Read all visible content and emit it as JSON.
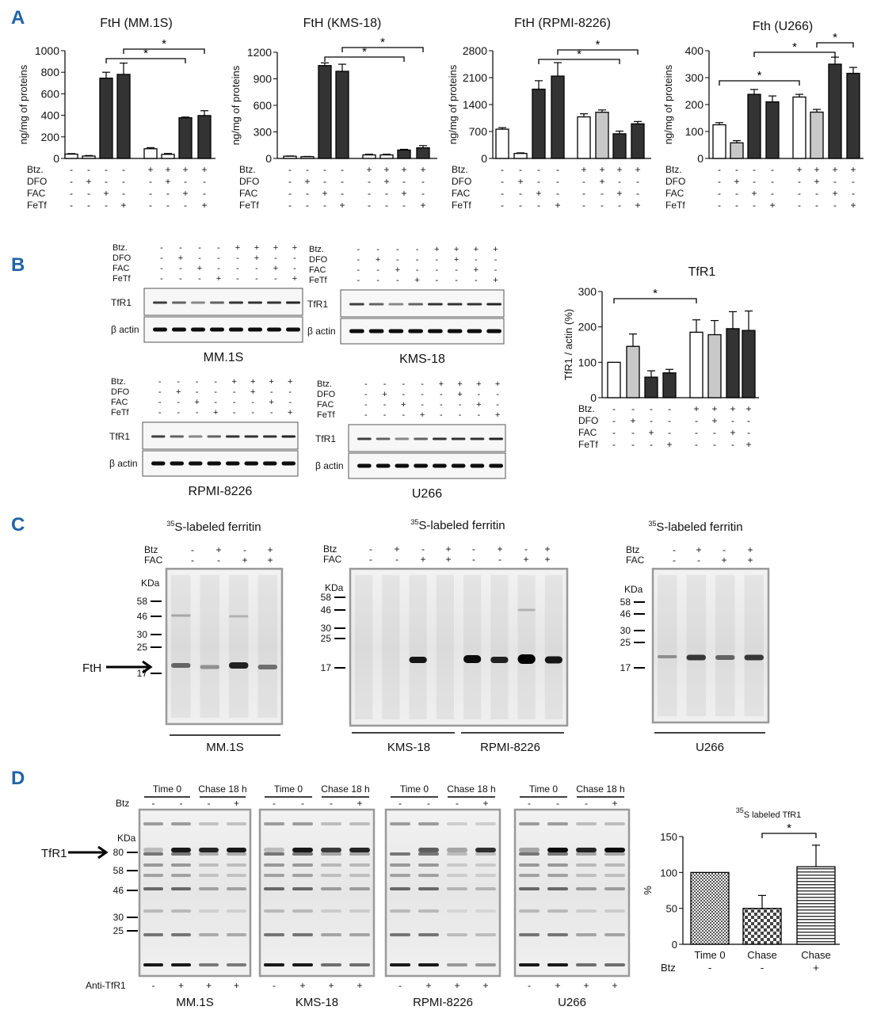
{
  "panels": {
    "A": "A",
    "B": "B",
    "C": "C",
    "D": "D"
  },
  "colors": {
    "panel_letter": "#1f63a6",
    "dark_bar": "#333333",
    "grey_bar": "#c8c8c8",
    "white_bar": "#ffffff"
  },
  "row_labels": {
    "btz": "Btz.",
    "dfo": "DFO",
    "fac": "FAC",
    "fetf": "FeTf",
    "btz_short": "Btz",
    "fac_c": "FAC",
    "anti_tfr1": "Anti-TfR1"
  },
  "sig": "*",
  "panel_a": {
    "ylabel": "ng/mg of proteins",
    "treat_signs": {
      "btz": [
        "-",
        "-",
        "-",
        "-",
        "+",
        "+",
        "+",
        "+"
      ],
      "dfo": [
        "-",
        "+",
        "-",
        "-",
        "-",
        "+",
        "-",
        "-"
      ],
      "fac": [
        "-",
        "-",
        "+",
        "-",
        "-",
        "-",
        "+",
        "-"
      ],
      "fetf": [
        "-",
        "-",
        "-",
        "+",
        "-",
        "-",
        "-",
        "+"
      ]
    }
  },
  "panel_b": {
    "blot_labels": {
      "tfr1": "TfR1",
      "actin": "β actin"
    },
    "cell_lines": [
      "MM.1S",
      "KMS-18",
      "RPMI-8226",
      "U266"
    ],
    "treat_signs": {
      "btz": [
        "-",
        "-",
        "-",
        "-",
        "+",
        "+",
        "+",
        "+"
      ],
      "dfo": [
        "-",
        "+",
        "-",
        "-",
        "-",
        "+",
        "-",
        "-"
      ],
      "fac": [
        "-",
        "-",
        "+",
        "-",
        "-",
        "-",
        "+",
        "-"
      ],
      "fetf": [
        "-",
        "-",
        "-",
        "+",
        "-",
        "-",
        "-",
        "+"
      ]
    }
  },
  "panel_c": {
    "title": "S-labeled ferritin",
    "title_sup": "35",
    "kda": "KDa",
    "ftH_arrow": "FtH",
    "markers_left": [
      "58",
      "46",
      "30",
      "25",
      "17"
    ],
    "markers_mid": [
      "58",
      "46",
      "30",
      "25",
      "17"
    ],
    "markers_right": [
      "58",
      "46",
      "30",
      "25",
      "17"
    ],
    "btz_signs_4": [
      "-",
      "+",
      "-",
      "+"
    ],
    "fac_signs_4": [
      "-",
      "-",
      "+",
      "+"
    ],
    "btz_signs_8": [
      "-",
      "+",
      "-",
      "+",
      "-",
      "+",
      "-",
      "+"
    ],
    "fac_signs_8": [
      "-",
      "-",
      "+",
      "+",
      "-",
      "-",
      "+",
      "+"
    ],
    "lines": [
      "MM.1S",
      "KMS-18",
      "RPMI-8226",
      "U266"
    ]
  },
  "panel_d": {
    "time0": "Time 0",
    "chase": "Chase 18 h",
    "kda": "KDa",
    "tfr1_arrow": "TfR1",
    "markers": [
      "80",
      "58",
      "46",
      "30",
      "25"
    ],
    "btz_signs": [
      "-",
      "-",
      "-",
      "+"
    ],
    "anti_signs": [
      "-",
      "+",
      "+",
      "+"
    ],
    "lines": [
      "MM.1S",
      "KMS-18",
      "RPMI-8226",
      "U266"
    ]
  },
  "chart_data": [
    {
      "type": "bar",
      "title": "FtH (MM.1S)",
      "ylabel": "ng/mg of proteins",
      "ylim": [
        0,
        1000
      ],
      "yticks": [
        0,
        200,
        400,
        600,
        800,
        1000
      ],
      "values": [
        40,
        22,
        745,
        780,
        90,
        38,
        378,
        398
      ],
      "errors": [
        5,
        5,
        55,
        105,
        10,
        8,
        6,
        45
      ],
      "fills": [
        "white",
        "white",
        "dark",
        "dark",
        "white",
        "white",
        "dark",
        "dark"
      ],
      "sig": [
        [
          2,
          6,
          "*"
        ],
        [
          3,
          7,
          "*"
        ]
      ]
    },
    {
      "type": "bar",
      "title": "FtH (KMS-18)",
      "ylabel": "ng/mg of proteins",
      "ylim": [
        0,
        1200
      ],
      "yticks": [
        0,
        300,
        600,
        900,
        1200
      ],
      "values": [
        25,
        20,
        1050,
        985,
        40,
        40,
        95,
        120
      ],
      "errors": [
        3,
        3,
        30,
        80,
        8,
        8,
        8,
        25
      ],
      "fills": [
        "white",
        "white",
        "dark",
        "dark",
        "white",
        "white",
        "dark",
        "dark"
      ],
      "sig": [
        [
          2,
          6,
          "*"
        ],
        [
          3,
          7,
          "*"
        ]
      ]
    },
    {
      "type": "bar",
      "title": "FtH (RPMI-8226)",
      "ylabel": "ng/mg of proteins",
      "ylim": [
        0,
        2800
      ],
      "yticks": [
        0,
        700,
        1400,
        2100,
        2800
      ],
      "values": [
        760,
        130,
        1800,
        2140,
        1080,
        1200,
        640,
        900
      ],
      "errors": [
        40,
        15,
        220,
        350,
        80,
        60,
        70,
        60
      ],
      "fills": [
        "white",
        "white",
        "dark",
        "dark",
        "white",
        "grey",
        "dark",
        "dark"
      ],
      "sig": [
        [
          2,
          6,
          "*"
        ],
        [
          3,
          7,
          "*"
        ]
      ]
    },
    {
      "type": "bar",
      "title": "Fth (U266)",
      "ylabel": "ng/mg of proteins",
      "ylim": [
        0,
        400
      ],
      "yticks": [
        0,
        100,
        200,
        300,
        400
      ],
      "values": [
        125,
        58,
        238,
        210,
        228,
        172,
        350,
        316
      ],
      "errors": [
        8,
        8,
        18,
        22,
        10,
        10,
        26,
        22
      ],
      "fills": [
        "white",
        "grey",
        "dark",
        "dark",
        "white",
        "grey",
        "dark",
        "dark"
      ],
      "sig": [
        [
          0,
          4,
          "*"
        ],
        [
          2,
          6,
          "*"
        ],
        [
          5,
          7,
          "*"
        ]
      ]
    },
    {
      "type": "bar",
      "title": "TfR1",
      "ylabel": "TfR1 / actin (%)",
      "ylim": [
        0,
        300
      ],
      "yticks": [
        0,
        100,
        200,
        300
      ],
      "values": [
        100,
        145,
        58,
        70,
        185,
        178,
        195,
        190
      ],
      "errors": [
        0,
        35,
        18,
        10,
        35,
        40,
        48,
        55
      ],
      "fills": [
        "white",
        "grey",
        "dark",
        "dark",
        "white",
        "grey",
        "dark",
        "dark"
      ],
      "sig": [
        [
          0,
          4,
          "*"
        ]
      ]
    },
    {
      "type": "bar",
      "title": "S labeled TfR1",
      "title_sup": "35",
      "ylabel": "%",
      "ylim": [
        0,
        150
      ],
      "yticks": [
        0,
        50,
        100,
        150
      ],
      "categories": [
        "Time 0",
        "Chase",
        "Chase"
      ],
      "btz": [
        "-",
        "-",
        "+"
      ],
      "values": [
        100,
        50,
        108
      ],
      "errors": [
        0,
        18,
        30
      ],
      "fills": [
        "dots",
        "check",
        "hlines"
      ],
      "sig": [
        [
          1,
          2,
          "*"
        ]
      ]
    }
  ]
}
